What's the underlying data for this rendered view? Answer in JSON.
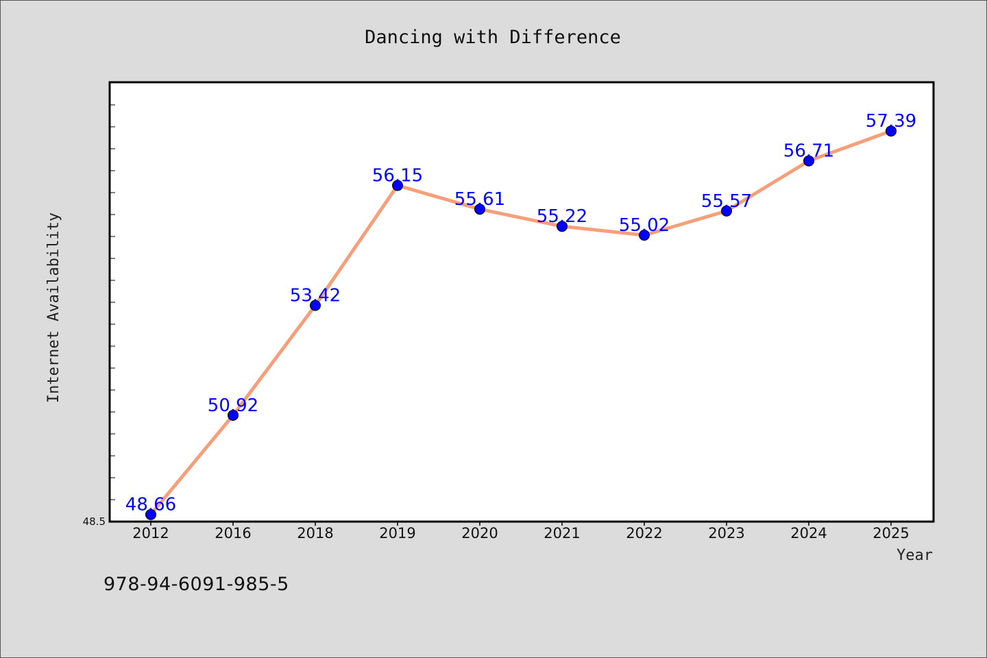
{
  "chart_data": {
    "type": "line",
    "title": "Dancing with Difference",
    "xlabel": "Year",
    "ylabel": "Internet Availability",
    "categories": [
      "2012",
      "2016",
      "2018",
      "2019",
      "2020",
      "2021",
      "2022",
      "2023",
      "2024",
      "2025"
    ],
    "series": [
      {
        "values": [
          48.66,
          50.92,
          53.42,
          56.15,
          55.61,
          55.22,
          55.02,
          55.57,
          56.71,
          57.39
        ]
      }
    ],
    "data_labels": [
      "48.66",
      "50.92",
      "53.42",
      "56.15",
      "55.61",
      "55.22",
      "55.02",
      "55.57",
      "56.71",
      "57.39"
    ],
    "ylim": [
      48.5,
      58.5
    ],
    "yticks": [
      "48.5"
    ],
    "grid": false,
    "line_color": "#f5a07a",
    "marker_color": "#0000ff",
    "label_color": "#0000ff"
  },
  "footer": {
    "isbn": "978-94-6091-985-5"
  }
}
